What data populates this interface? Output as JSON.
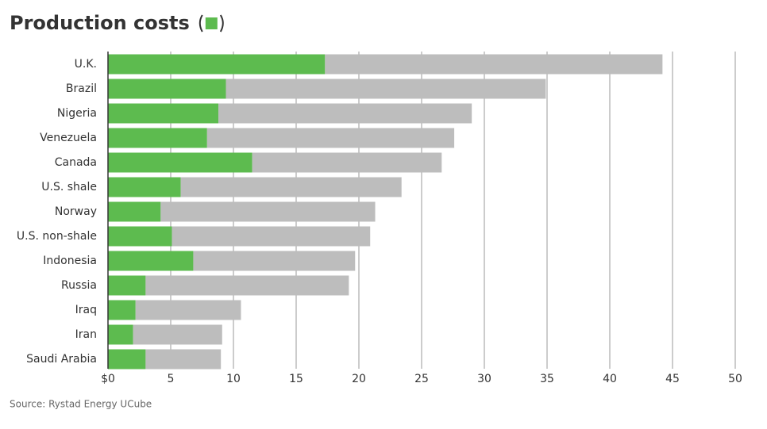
{
  "chart_data": {
    "type": "stacked-barh",
    "categories": [
      "U.K.",
      "Brazil",
      "Nigeria",
      "Venezuela",
      "Canada",
      "U.S. shale",
      "Norway",
      "U.S. non-shale",
      "Indonesia",
      "Russia",
      "Iraq",
      "Iran",
      "Saudi Arabia"
    ],
    "series": [
      {
        "name": "Production costs",
        "color": "#5dbb4f",
        "values": [
          17.3,
          9.4,
          8.8,
          7.9,
          11.5,
          5.8,
          4.2,
          5.1,
          6.8,
          3.0,
          2.2,
          2.0,
          3.0
        ]
      },
      {
        "color": "#bdbdbd",
        "values": [
          26.9,
          25.5,
          20.2,
          19.7,
          15.1,
          17.6,
          17.1,
          15.8,
          12.9,
          16.2,
          8.4,
          7.1,
          6.0
        ]
      }
    ],
    "xlim": [
      0,
      50
    ],
    "xticks": [
      {
        "value": 0,
        "label": "$0"
      },
      5,
      10,
      15,
      20,
      25,
      30,
      35,
      40,
      45,
      50
    ],
    "grid": true,
    "source": "Source: Rystad Energy UCube"
  }
}
